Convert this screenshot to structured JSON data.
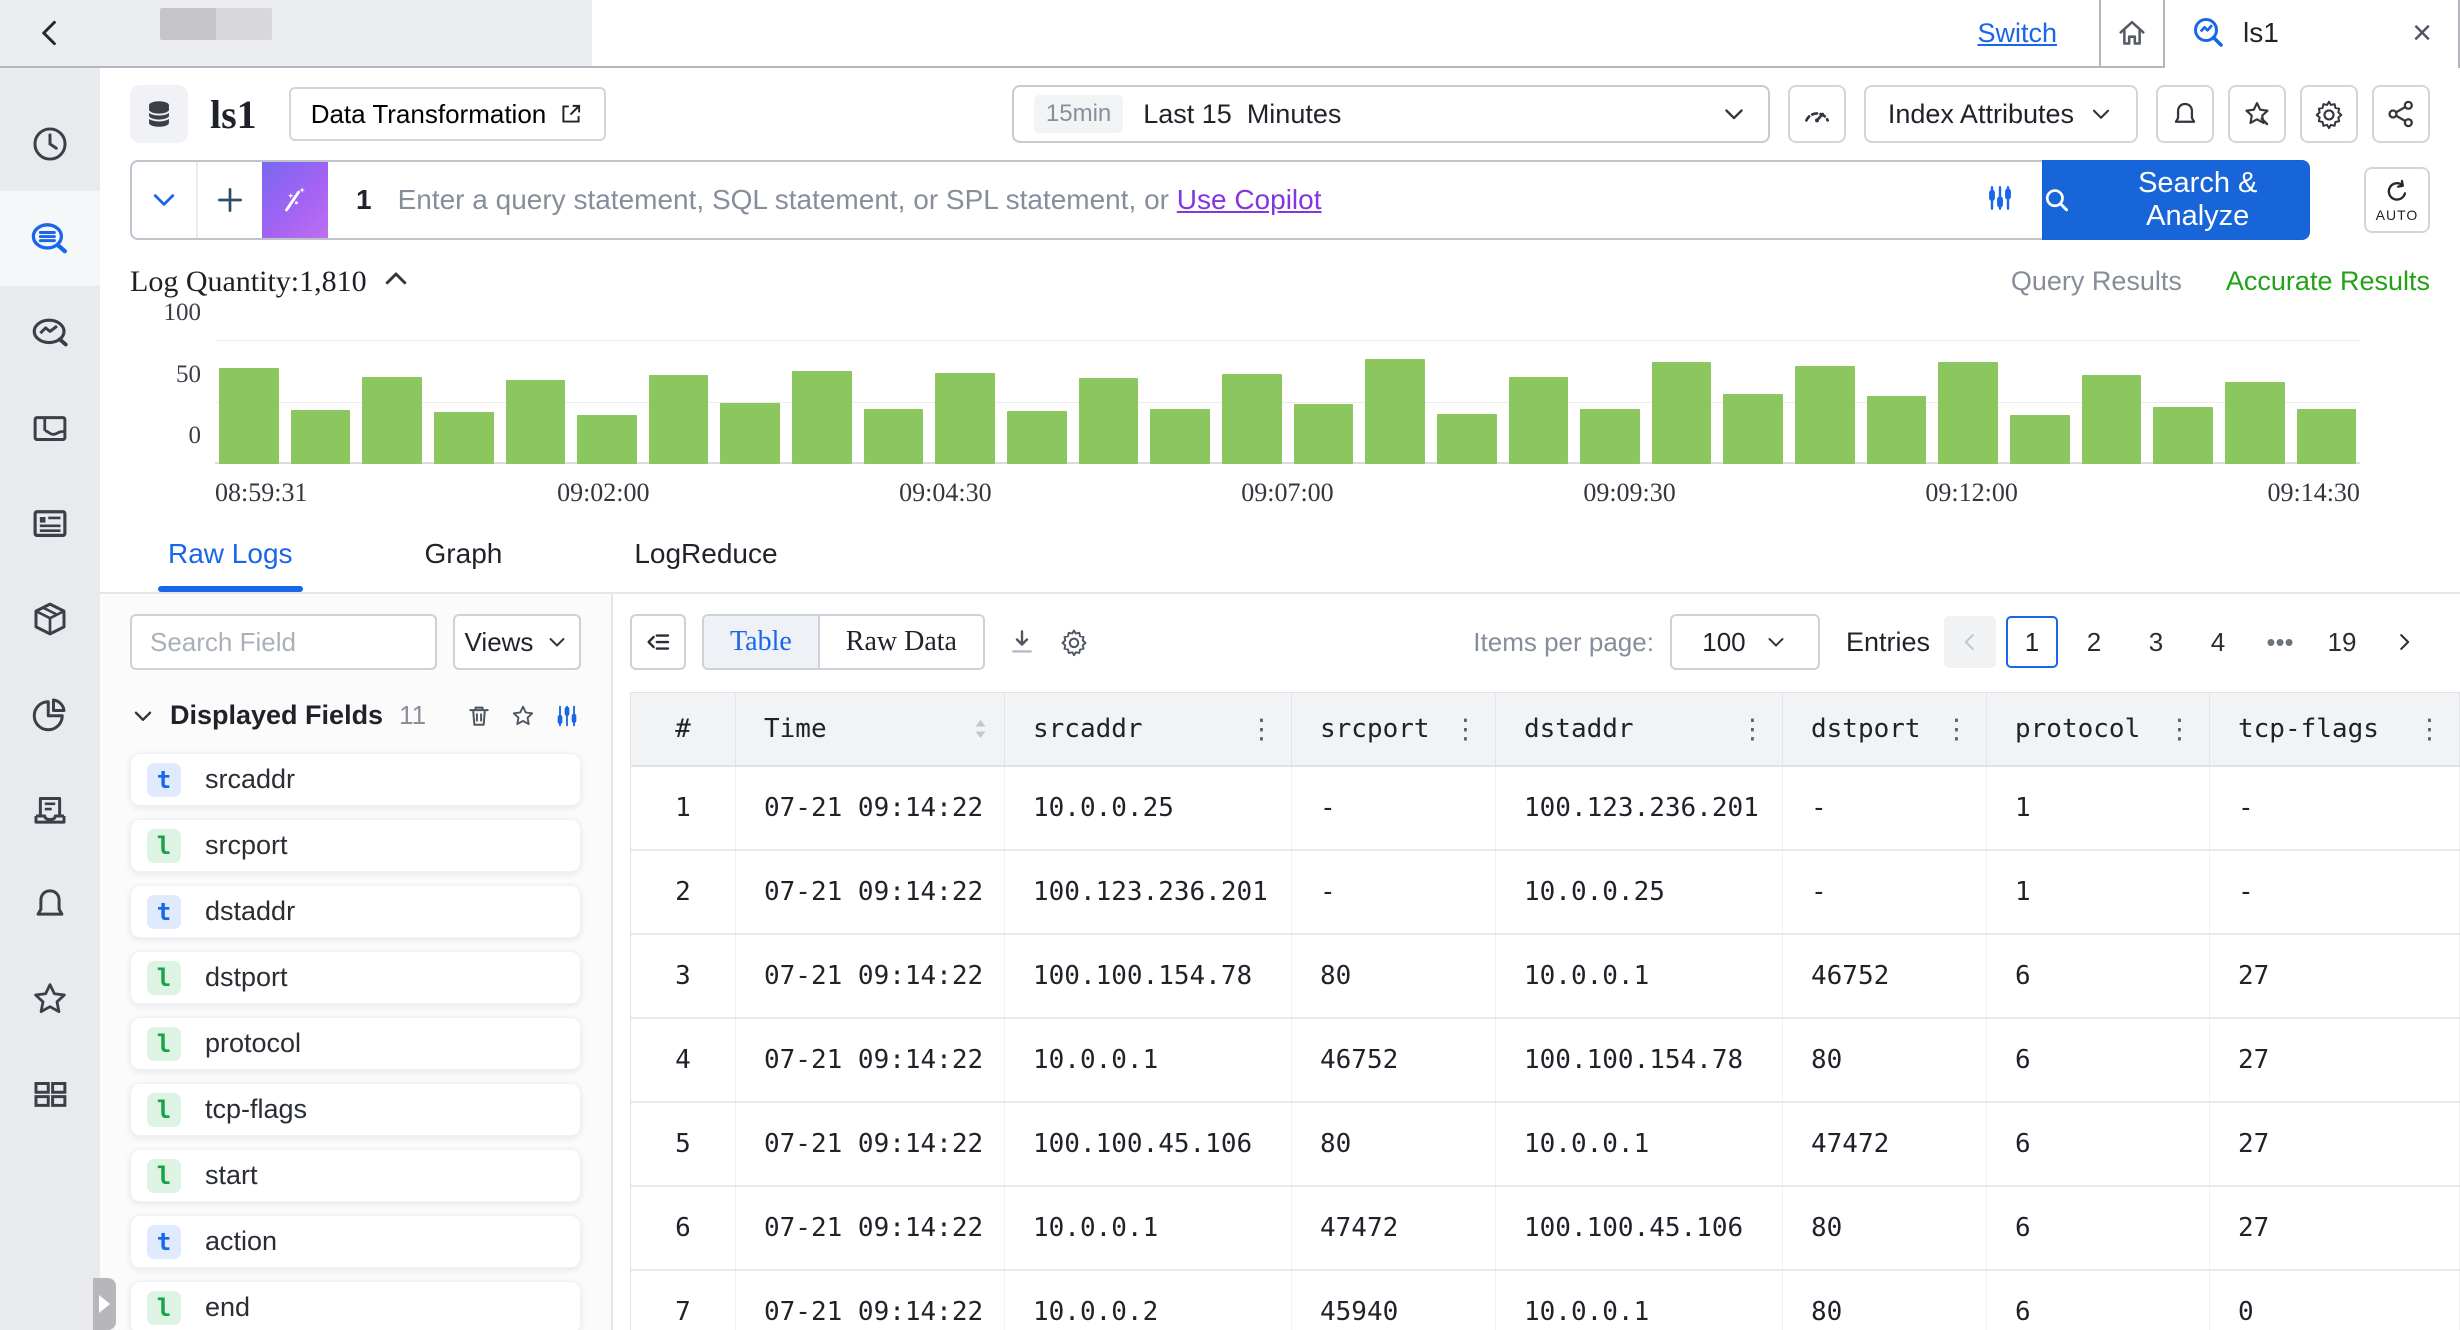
{
  "topbar": {
    "switch_label": "Switch",
    "tab_title": "ls1"
  },
  "header": {
    "logstore_name": "ls1",
    "data_transformation_label": "Data Transformation",
    "time_badge": "15min",
    "time_label": "Last 15  Minutes",
    "index_attributes_label": "Index Attributes"
  },
  "query": {
    "line_number": "1",
    "placeholder": "Enter a query statement, SQL statement, or SPL statement, or ",
    "copilot_label": "Use Copilot",
    "search_label": "Search & Analyze",
    "auto_label": "AUTO"
  },
  "chart": {
    "title": "Log Quantity:1,810",
    "query_results_label": "Query Results",
    "accurate_results_label": "Accurate Results"
  },
  "chart_data": {
    "type": "bar",
    "title": "Log Quantity:1,810",
    "total": 1810,
    "x_labels": [
      "08:59:31",
      "09:02:00",
      "09:04:30",
      "09:07:00",
      "09:09:30",
      "09:12:00",
      "09:14:30"
    ],
    "yticks": [
      "0",
      "50",
      "100"
    ],
    "ylim": [
      0,
      100
    ],
    "values": [
      78,
      44,
      71,
      42,
      68,
      40,
      72,
      50,
      76,
      45,
      74,
      43,
      70,
      45,
      73,
      49,
      85,
      41,
      71,
      45,
      83,
      57,
      80,
      55,
      83,
      40,
      72,
      46,
      67,
      45
    ],
    "bar_color": "#8cc65e",
    "grid": true
  },
  "tabs": {
    "raw_logs": "Raw Logs",
    "graph": "Graph",
    "logreduce": "LogReduce"
  },
  "fields_panel": {
    "search_placeholder": "Search Field",
    "views_label": "Views",
    "displayed_fields_label": "Displayed Fields",
    "count": "11",
    "items": [
      {
        "type": "t",
        "name": "srcaddr"
      },
      {
        "type": "l",
        "name": "srcport"
      },
      {
        "type": "t",
        "name": "dstaddr"
      },
      {
        "type": "l",
        "name": "dstport"
      },
      {
        "type": "l",
        "name": "protocol"
      },
      {
        "type": "l",
        "name": "tcp-flags"
      },
      {
        "type": "l",
        "name": "start"
      },
      {
        "type": "t",
        "name": "action"
      },
      {
        "type": "l",
        "name": "end"
      }
    ]
  },
  "toolbar": {
    "table_label": "Table",
    "raw_data_label": "Raw Data"
  },
  "pagination": {
    "items_per_page_label": "Items per page:",
    "page_size": "100",
    "entries_label": "Entries",
    "pages": [
      "1",
      "2",
      "3",
      "4",
      "•••",
      "19"
    ],
    "active_page": "1"
  },
  "table": {
    "columns": [
      {
        "label": "#",
        "icon": "none"
      },
      {
        "label": "Time",
        "icon": "sort"
      },
      {
        "label": "srcaddr",
        "icon": "kebab"
      },
      {
        "label": "srcport",
        "icon": "kebab"
      },
      {
        "label": "dstaddr",
        "icon": "kebab"
      },
      {
        "label": "dstport",
        "icon": "kebab"
      },
      {
        "label": "protocol",
        "icon": "kebab"
      },
      {
        "label": "tcp-flags",
        "icon": "kebab"
      }
    ],
    "rows": [
      [
        "1",
        "07-21 09:14:22",
        "10.0.0.25",
        "-",
        "100.123.236.201",
        "-",
        "1",
        "-"
      ],
      [
        "2",
        "07-21 09:14:22",
        "100.123.236.201",
        "-",
        "10.0.0.25",
        "-",
        "1",
        "-"
      ],
      [
        "3",
        "07-21 09:14:22",
        "100.100.154.78",
        "80",
        "10.0.0.1",
        "46752",
        "6",
        "27"
      ],
      [
        "4",
        "07-21 09:14:22",
        "10.0.0.1",
        "46752",
        "100.100.154.78",
        "80",
        "6",
        "27"
      ],
      [
        "5",
        "07-21 09:14:22",
        "100.100.45.106",
        "80",
        "10.0.0.1",
        "47472",
        "6",
        "27"
      ],
      [
        "6",
        "07-21 09:14:22",
        "10.0.0.1",
        "47472",
        "100.100.45.106",
        "80",
        "6",
        "27"
      ],
      [
        "7",
        "07-21 09:14:22",
        "10.0.0.2",
        "45940",
        "10.0.0.1",
        "80",
        "6",
        "0"
      ]
    ]
  },
  "colors": {
    "accent_blue": "#1a66e8",
    "button_blue": "#1765d8",
    "bar_green": "#8cc65e",
    "success_green": "#23a117",
    "copilot_purple": "#8236e0"
  }
}
